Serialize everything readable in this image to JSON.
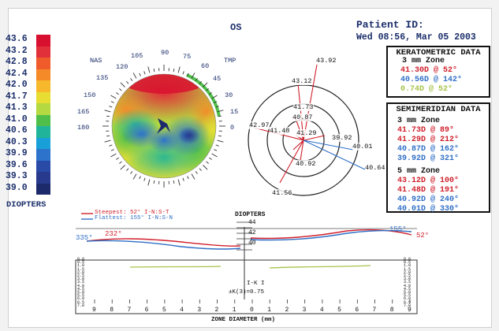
{
  "header": {
    "eye": "OS",
    "patient_label": "Patient ID:",
    "datetime": "Wed 08:56, Mar 05 2003"
  },
  "legend": {
    "unit": "DIOPTERS",
    "items": [
      {
        "value": "43.6",
        "color": "#d8102f"
      },
      {
        "value": "43.2",
        "color": "#e2303a"
      },
      {
        "value": "42.8",
        "color": "#ef5b2b"
      },
      {
        "value": "42.4",
        "color": "#f58a28"
      },
      {
        "value": "42.0",
        "color": "#f7b92b"
      },
      {
        "value": "41.7",
        "color": "#e8dd33"
      },
      {
        "value": "41.3",
        "color": "#b5d940"
      },
      {
        "value": "41.0",
        "color": "#4fbf4a"
      },
      {
        "value": "40.6",
        "color": "#20b59b"
      },
      {
        "value": "40.3",
        "color": "#1aa0d8"
      },
      {
        "value": "39.9",
        "color": "#2d73cc"
      },
      {
        "value": "39.6",
        "color": "#2a4aa8"
      },
      {
        "value": "39.3",
        "color": "#273a8d"
      },
      {
        "value": "39.0",
        "color": "#1c2a6c"
      }
    ]
  },
  "topo": {
    "nas": "NAS",
    "tmp": "TMP",
    "angles": [
      "90",
      "105",
      "75",
      "120",
      "60",
      "135",
      "45",
      "150",
      "30",
      "165",
      "15",
      "180",
      "0"
    ]
  },
  "sim": {
    "labels": [
      "43.92",
      "43.12",
      "41.73",
      "40.87",
      "42.97",
      "41.48",
      "41.29",
      "39.92",
      "40.01",
      "40.92",
      "41.56",
      "40.64"
    ]
  },
  "kerato": {
    "title": "KERATOMETRIC DATA",
    "zone": "3 mm Zone",
    "lines": [
      {
        "text": "41.30D @ 52°",
        "color": "#d01f2b"
      },
      {
        "text": "40.56D @ 142°",
        "color": "#2f6fc6"
      },
      {
        "text": "0.74D @ 52°",
        "color": "#a7c34a"
      }
    ]
  },
  "semi": {
    "title": "SEMIMERIDIAN DATA",
    "zone3": "3 mm Zone",
    "lines3": [
      {
        "text": "41.73D @ 89°",
        "color": "#d01f2b"
      },
      {
        "text": "41.29D @ 212°",
        "color": "#d01f2b"
      },
      {
        "text": "40.87D @ 162°",
        "color": "#2f6fc6"
      },
      {
        "text": "39.92D @ 321°",
        "color": "#2f6fc6"
      }
    ],
    "zone5": "5 mm Zone",
    "lines5": [
      {
        "text": "43.12D @ 100°",
        "color": "#d01f2b"
      },
      {
        "text": "41.48D @ 191°",
        "color": "#d01f2b"
      },
      {
        "text": "40.92D @ 240°",
        "color": "#2f6fc6"
      },
      {
        "text": "40.01D @ 330°",
        "color": "#2f6fc6"
      }
    ]
  },
  "profile": {
    "steepest": "Steepest: 52°  I-N:S-T",
    "flattest": "Flattest: 155°  I-N:S-N",
    "diopters_label": "DIOPTERS",
    "scale_up": [
      "44",
      "42",
      "40"
    ],
    "left_red": "232°",
    "left_blue": "335°",
    "right_blue": "155°",
    "right_red": "52°",
    "zone_label": "ZONE DIAMETER (mm)",
    "k_label": "I-K I",
    "k3": "±K(3)=0.75",
    "x_ticks": [
      "9",
      "8",
      "7",
      "6",
      "5",
      "4",
      "3",
      "2",
      "1",
      "0",
      "1",
      "2",
      "3",
      "4",
      "5",
      "6",
      "7",
      "8",
      "9"
    ],
    "y_ticks": [
      "0.0",
      "0.5",
      "1.0",
      "1.5",
      "2.0",
      "2.5",
      "3.0",
      "3.5",
      "4.0",
      "4.5",
      "5.0",
      "5.5",
      "6.0",
      "6.5",
      "7.0"
    ]
  },
  "colors": {
    "red": "#d01f2b",
    "blue": "#2f6fc6",
    "green": "#a7c34a",
    "navy": "#1b2e6a"
  }
}
